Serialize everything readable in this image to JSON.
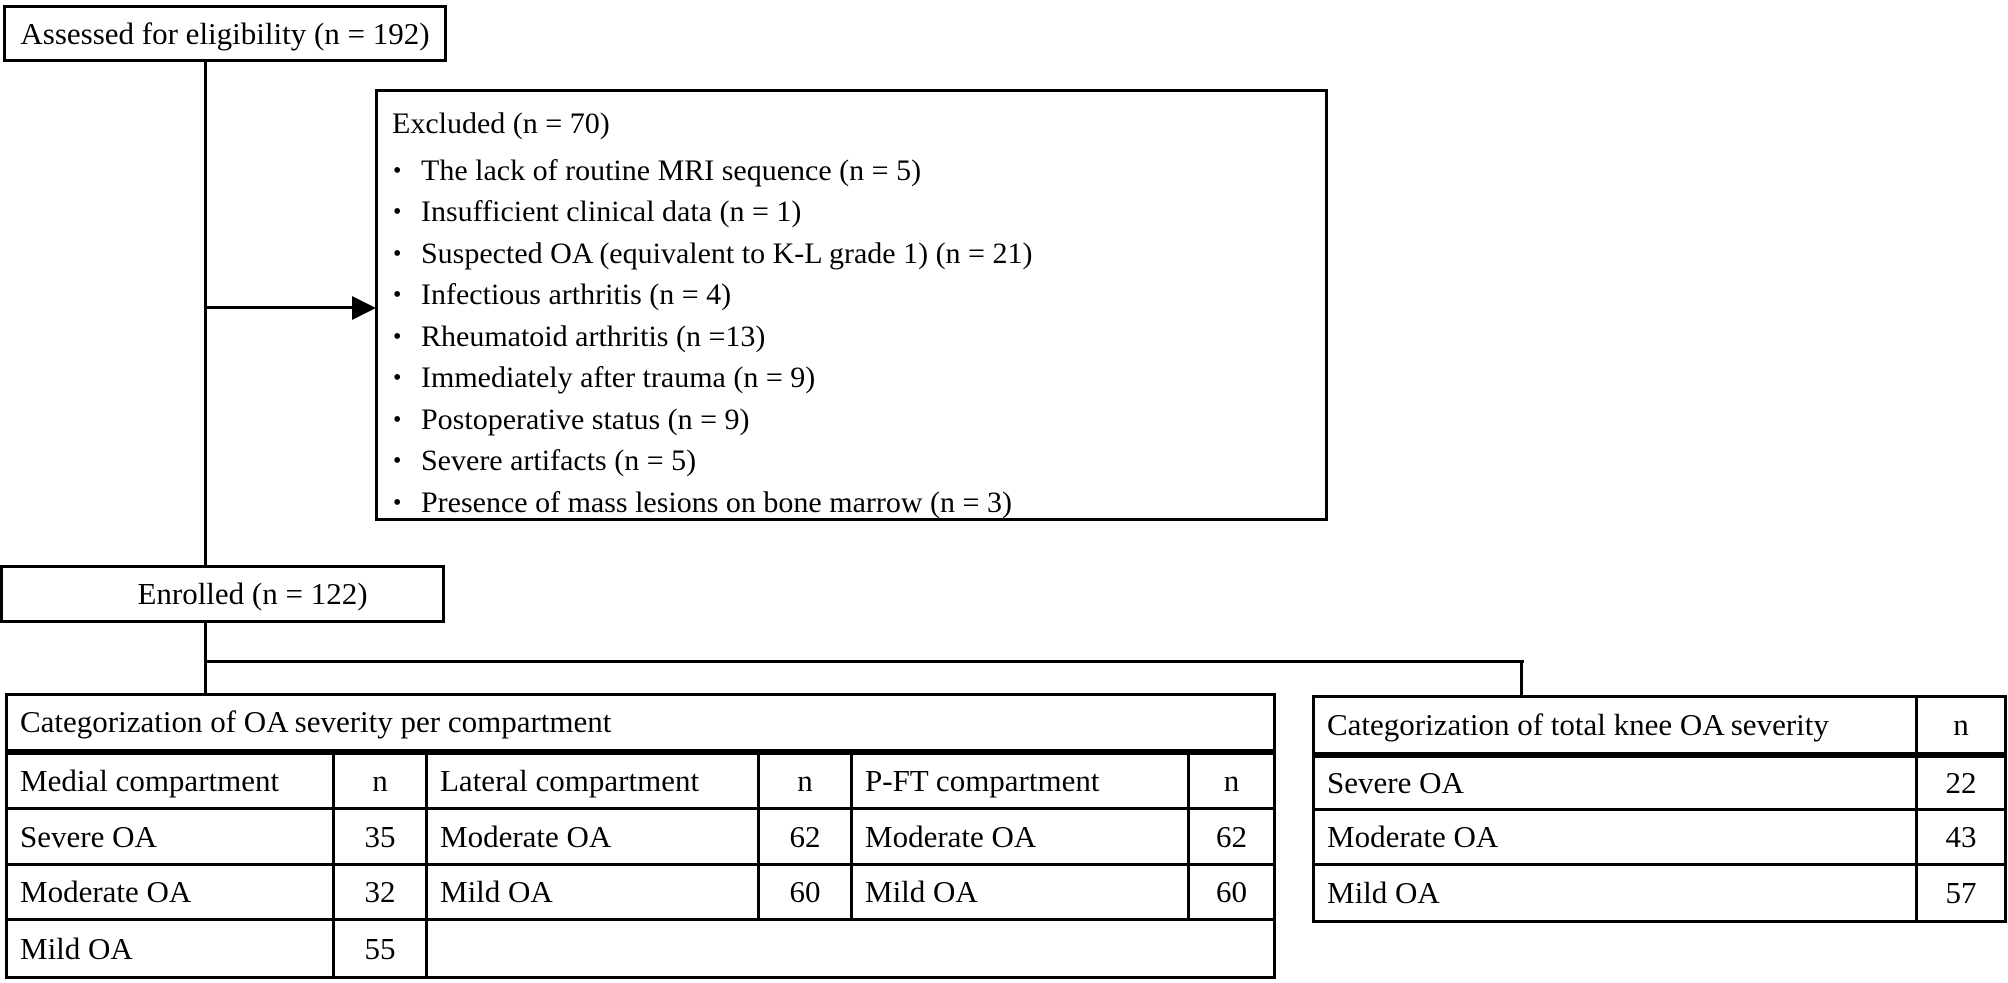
{
  "colors": {
    "ink": "#000000",
    "background": "#ffffff"
  },
  "flow": {
    "assessed_box": {
      "label": "Assessed for eligibility (n = 192)"
    },
    "excluded_box": {
      "title": "Excluded (n = 70)",
      "bullet_char": "•",
      "items": [
        "The lack of routine MRI sequence (n = 5)",
        "Insufficient clinical data (n = 1)",
        "Suspected OA (equivalent to K-L grade 1) (n = 21)",
        "Infectious arthritis (n = 4)",
        "Rheumatoid arthritis (n =13)",
        "Immediately after trauma (n = 9)",
        "Postoperative status (n = 9)",
        "Severe artifacts (n = 5)",
        "Presence of mass lesions on bone marrow (n = 3)"
      ]
    },
    "enrolled_box": {
      "label": "Enrolled (n = 122)"
    }
  },
  "compartment_table": {
    "title": "Categorization of OA severity per compartment",
    "header_row": [
      "Medial compartment",
      "n",
      "Lateral compartment",
      "n",
      "P-FT compartment",
      "n"
    ],
    "rows": [
      [
        "Severe OA",
        "35",
        "Moderate OA",
        "62",
        "Moderate OA",
        "62"
      ],
      [
        "Moderate OA",
        "32",
        "Mild OA",
        "60",
        "Mild OA",
        "60"
      ],
      [
        "Mild OA",
        "55"
      ]
    ]
  },
  "total_knee_table": {
    "title": "Categorization of total knee OA severity",
    "n_header": "n",
    "rows": [
      [
        "Severe OA",
        "22"
      ],
      [
        "Moderate OA",
        "43"
      ],
      [
        "Mild OA",
        "57"
      ]
    ]
  }
}
